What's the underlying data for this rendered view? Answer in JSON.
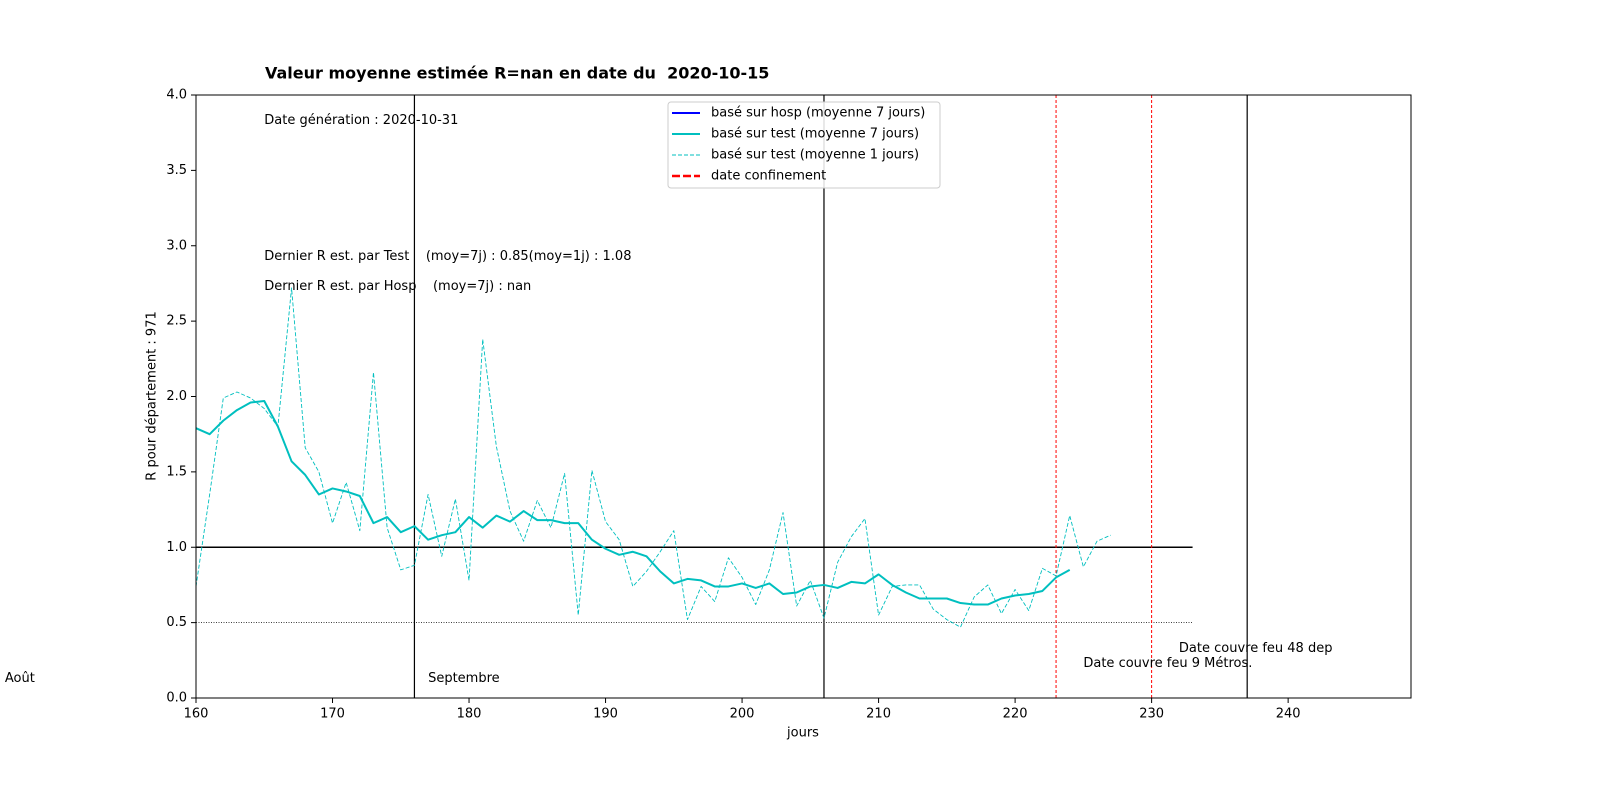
{
  "chart_data": {
    "type": "line",
    "title": "Valeur moyenne estimée R=nan en date du  2020-10-15",
    "xlabel": "jours",
    "ylabel": "R pour département : 971",
    "xlim": [
      160,
      249
    ],
    "ylim": [
      0,
      4
    ],
    "xticks": [
      160,
      170,
      180,
      190,
      200,
      210,
      220,
      230,
      240
    ],
    "yticks": [
      {
        "value": 0,
        "label": "0.0"
      },
      0.5,
      {
        "value": 1,
        "label": "1.0"
      },
      1.5,
      {
        "value": 2,
        "label": "2.0"
      },
      2.5,
      {
        "value": 3,
        "label": "3.0"
      },
      3.5,
      {
        "value": 4,
        "label": "4.0"
      }
    ],
    "x": [
      160,
      161,
      162,
      163,
      164,
      165,
      166,
      167,
      168,
      169,
      170,
      171,
      172,
      173,
      174,
      175,
      176,
      177,
      178,
      179,
      180,
      181,
      182,
      183,
      184,
      185,
      186,
      187,
      188,
      189,
      190,
      191,
      192,
      193,
      194,
      195,
      196,
      197,
      198,
      199,
      200,
      201,
      202,
      203,
      204,
      205,
      206,
      207,
      208,
      209,
      210,
      211,
      212,
      213,
      214,
      215,
      216,
      217,
      218,
      219,
      220,
      221,
      222,
      223,
      224,
      225,
      226,
      227
    ],
    "series": [
      {
        "name": "basé sur hosp (moyenne 7 jours)",
        "color": "#0000ff",
        "style": "solid",
        "values": [
          null,
          null,
          null,
          null,
          null,
          null,
          null,
          null,
          null,
          null,
          null,
          null,
          null,
          null,
          null,
          null,
          null,
          null,
          null,
          null,
          null,
          null,
          null,
          null,
          null,
          null,
          null,
          null,
          null,
          null,
          null,
          null,
          null,
          null,
          null,
          null,
          null,
          null,
          null,
          null,
          null,
          null,
          null,
          null,
          null,
          null,
          null,
          null,
          null,
          null,
          null,
          null,
          null,
          null,
          null,
          null,
          null,
          null,
          null,
          null,
          null,
          null,
          null,
          null,
          null,
          null,
          null,
          null
        ]
      },
      {
        "name": "basé sur test (moyenne 7 jours)",
        "color": "#00bfbf",
        "style": "solid",
        "values": [
          1.79,
          1.75,
          1.84,
          1.91,
          1.96,
          1.97,
          1.8,
          1.57,
          1.48,
          1.35,
          1.39,
          1.37,
          1.34,
          1.16,
          1.2,
          1.1,
          1.14,
          1.05,
          1.08,
          1.1,
          1.2,
          1.13,
          1.21,
          1.17,
          1.24,
          1.18,
          1.18,
          1.16,
          1.16,
          1.05,
          0.99,
          0.95,
          0.97,
          0.94,
          0.84,
          0.76,
          0.79,
          0.78,
          0.74,
          0.74,
          0.76,
          0.73,
          0.76,
          0.69,
          0.7,
          0.74,
          0.75,
          0.73,
          0.77,
          0.76,
          0.82,
          0.75,
          0.7,
          0.66,
          0.66,
          0.66,
          0.63,
          0.62,
          0.62,
          0.66,
          0.68,
          0.69,
          0.71,
          0.8,
          0.85,
          null,
          null,
          null
        ]
      },
      {
        "name": "basé sur test (moyenne 1 jours)",
        "color": "#00bfbf",
        "style": "dashed",
        "values": [
          0.74,
          1.35,
          1.99,
          2.03,
          1.99,
          1.92,
          1.8,
          2.72,
          1.66,
          1.5,
          1.16,
          1.43,
          1.11,
          2.16,
          1.13,
          0.85,
          0.88,
          1.35,
          0.94,
          1.32,
          0.78,
          2.38,
          1.67,
          1.24,
          1.04,
          1.31,
          1.13,
          1.49,
          0.55,
          1.51,
          1.17,
          1.05,
          0.74,
          0.84,
          0.97,
          1.11,
          0.52,
          0.74,
          0.64,
          0.93,
          0.8,
          0.62,
          0.85,
          1.23,
          0.61,
          0.78,
          0.53,
          0.9,
          1.07,
          1.19,
          0.55,
          0.74,
          0.75,
          0.75,
          0.59,
          0.52,
          0.47,
          0.67,
          0.75,
          0.56,
          0.72,
          0.58,
          0.86,
          0.81,
          1.21,
          0.87,
          1.04,
          1.08
        ]
      }
    ],
    "confinement": {
      "name": "date confinement",
      "color": "#ff0000",
      "x": [
        223,
        230
      ]
    },
    "month_lines": [
      176,
      206,
      237
    ],
    "hlines": [
      {
        "y": 1,
        "style": "solid"
      },
      {
        "y": 0.5,
        "style": "dotted"
      }
    ],
    "hlines_xmax": 233,
    "annotations": {
      "generation": "Date génération : 2020-10-31",
      "last_test": "Dernier R est. par Test    (moy=7j) : 0.85(moy=1j) : 1.08",
      "last_hosp": "Dernier R est. par Hosp    (moy=7j) : nan",
      "month_aout": "Août",
      "month_sept": "Septembre",
      "couvre_feu_48": "Date couvre feu 48 dep",
      "couvre_feu_9": "Date couvre feu 9 Métros."
    }
  }
}
